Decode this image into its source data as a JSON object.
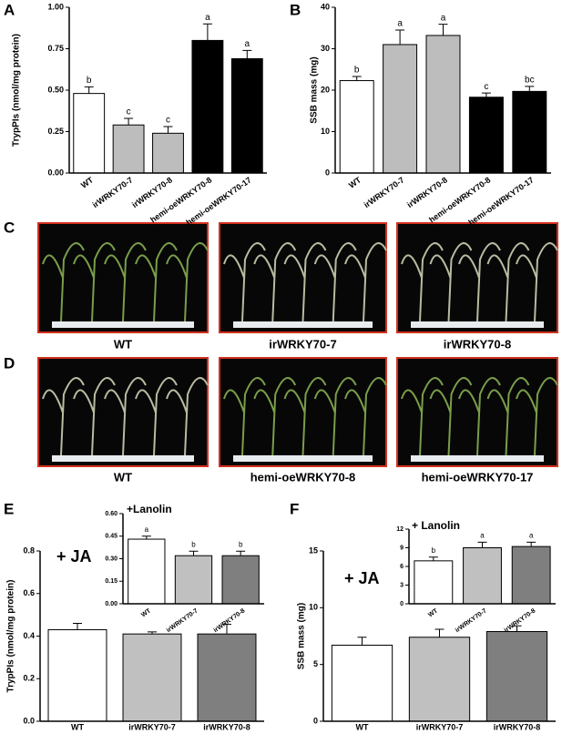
{
  "chart_data": [
    {
      "type": "bar",
      "panel_label": "A",
      "ylabel": "TrypPIs (nmol/mg protein)",
      "categories": [
        "WT",
        "irWRKY70-7",
        "irWRKY70-8",
        "hemi-oeWRKY70-8",
        "hemi-oeWRKY70-17"
      ],
      "values": [
        0.48,
        0.29,
        0.24,
        0.8,
        0.69
      ],
      "errors": [
        0.04,
        0.04,
        0.04,
        0.1,
        0.05
      ],
      "significance": [
        "b",
        "c",
        "c",
        "a",
        "a"
      ],
      "colors": [
        "#ffffff",
        "#bdbdbd",
        "#bdbdbd",
        "#000000",
        "#000000"
      ],
      "ylim": [
        0,
        1
      ],
      "yticks": [
        {
          "value": 0,
          "label": "0.00"
        },
        0.25,
        {
          "value": 0.5,
          "label": "0.50"
        },
        0.75,
        {
          "value": 1,
          "label": "1.00"
        }
      ]
    },
    {
      "type": "bar",
      "panel_label": "B",
      "ylabel": "SSB mass (mg)",
      "categories": [
        "WT",
        "irWRKY70-7",
        "irWRKY70-8",
        "hemi-oeWRKY70-8",
        "hemi-oeWRKY70-17"
      ],
      "values": [
        22.3,
        31,
        33.2,
        18.3,
        19.7
      ],
      "errors": [
        1,
        3.5,
        2.7,
        1,
        1.2
      ],
      "significance": [
        "b",
        "a",
        "a",
        "c",
        "bc"
      ],
      "colors": [
        "#ffffff",
        "#bdbdbd",
        "#bdbdbd",
        "#000000",
        "#000000"
      ],
      "ylim": [
        0,
        40
      ],
      "yticks": [
        0,
        10,
        20,
        30,
        40
      ]
    },
    {
      "type": "bar",
      "panel_label": "E",
      "ylabel": "TrypPIs (nmol/mg protein)",
      "annotation": "+ JA",
      "categories": [
        "WT",
        "irWRKY70-7",
        "irWRKY70-8"
      ],
      "values": [
        0.43,
        0.41,
        0.41
      ],
      "errors": [
        0.03,
        0.01,
        0.045
      ],
      "colors": [
        "#ffffff",
        "#c0c0c0",
        "#7f7f7f"
      ],
      "ylim": [
        0,
        0.8
      ],
      "yticks": [
        {
          "value": 0,
          "label": "0.0"
        },
        0.2,
        0.4,
        0.6,
        0.8
      ]
    },
    {
      "type": "bar",
      "annotation": "+Lanolin",
      "categories": [
        "WT",
        "irWRKY70-7",
        "irWRKY70-8"
      ],
      "values": [
        0.43,
        0.32,
        0.32
      ],
      "errors": [
        0.02,
        0.03,
        0.03
      ],
      "significance": [
        "a",
        "b",
        "b"
      ],
      "colors": [
        "#ffffff",
        "#c0c0c0",
        "#7f7f7f"
      ],
      "ylim": [
        0,
        0.6
      ],
      "yticks": [
        {
          "value": 0,
          "label": "0.00"
        },
        0.15,
        {
          "value": 0.3,
          "label": "0.30"
        },
        0.45,
        {
          "value": 0.6,
          "label": "0.60"
        }
      ]
    },
    {
      "type": "bar",
      "panel_label": "F",
      "ylabel": "SSB mass (mg)",
      "annotation": "+ JA",
      "categories": [
        "WT",
        "irWRKY70-7",
        "irWRKY70-8"
      ],
      "values": [
        6.7,
        7.4,
        7.9
      ],
      "errors": [
        0.7,
        0.7,
        0.5
      ],
      "colors": [
        "#ffffff",
        "#c0c0c0",
        "#7f7f7f"
      ],
      "ylim": [
        0,
        15
      ],
      "yticks": [
        0,
        5,
        10,
        15
      ]
    },
    {
      "type": "bar",
      "annotation": "+ Lanolin",
      "categories": [
        "WT",
        "irWRKY70-7",
        "irWRKY70-8"
      ],
      "values": [
        6.9,
        9,
        9.2
      ],
      "errors": [
        0.6,
        0.9,
        0.7
      ],
      "significance": [
        "b",
        "a",
        "a"
      ],
      "colors": [
        "#ffffff",
        "#c0c0c0",
        "#7f7f7f"
      ],
      "ylim": [
        0,
        12
      ],
      "yticks": [
        0,
        3,
        6,
        9,
        12
      ]
    }
  ],
  "photo_panels": [
    {
      "panel_label": "C",
      "captions": [
        "WT",
        "irWRKY70-7",
        "irWRKY70-8"
      ]
    },
    {
      "panel_label": "D",
      "captions": [
        "WT",
        "hemi-oeWRKY70-8",
        "hemi-oeWRKY70-17"
      ]
    }
  ]
}
